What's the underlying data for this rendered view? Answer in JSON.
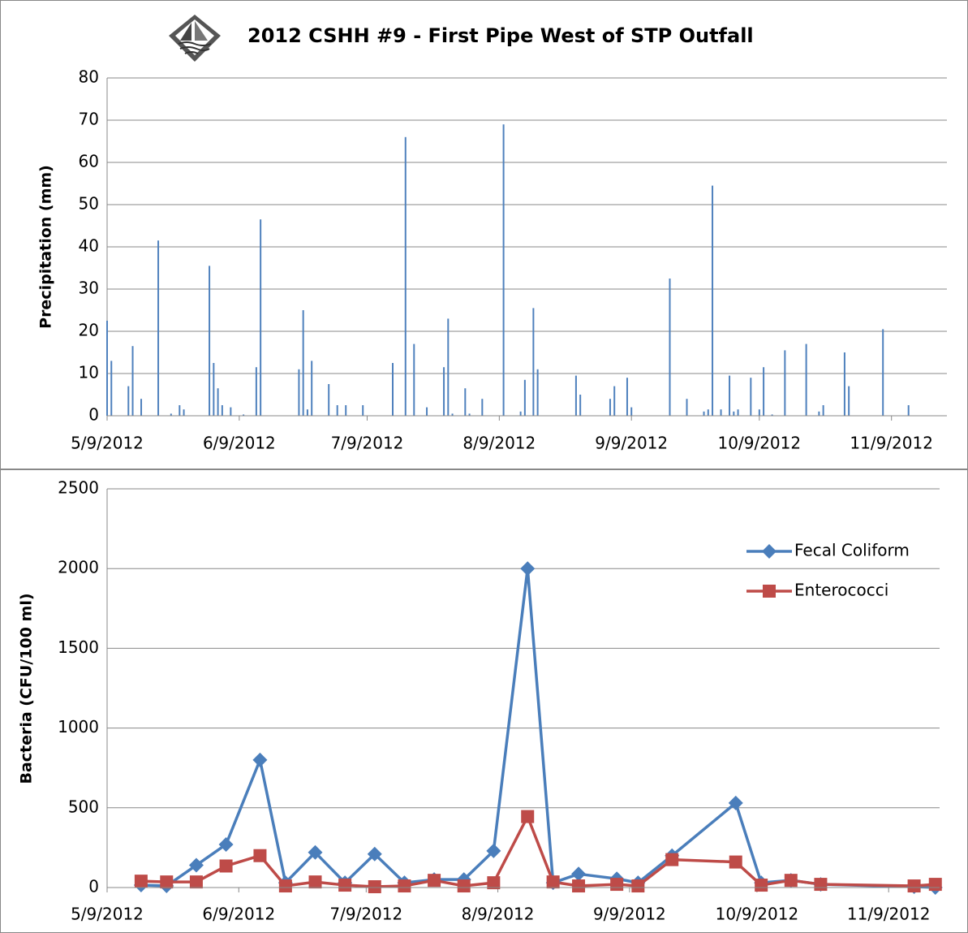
{
  "chart_data": [
    {
      "type": "bar",
      "title": "2012 CSHH #9 - First Pipe West of STP Outfall",
      "y_label": "Precipitation (mm)",
      "color": "#4f81bd",
      "grid": true,
      "x": [
        "2012-05-09",
        "2012-05-10",
        "2012-05-14",
        "2012-05-15",
        "2012-05-17",
        "2012-05-21",
        "2012-05-24",
        "2012-05-26",
        "2012-05-27",
        "2012-06-02",
        "2012-06-03",
        "2012-06-04",
        "2012-06-05",
        "2012-06-07",
        "2012-06-10",
        "2012-06-13",
        "2012-06-14",
        "2012-06-23",
        "2012-06-24",
        "2012-06-25",
        "2012-06-26",
        "2012-06-30",
        "2012-07-02",
        "2012-07-04",
        "2012-07-08",
        "2012-07-15",
        "2012-07-18",
        "2012-07-20",
        "2012-07-23",
        "2012-07-27",
        "2012-07-28",
        "2012-07-29",
        "2012-08-01",
        "2012-08-02",
        "2012-08-05",
        "2012-08-10",
        "2012-08-14",
        "2012-08-15",
        "2012-08-17",
        "2012-08-18",
        "2012-08-27",
        "2012-08-28",
        "2012-09-04",
        "2012-09-05",
        "2012-09-08",
        "2012-09-09",
        "2012-09-18",
        "2012-09-22",
        "2012-09-26",
        "2012-09-27",
        "2012-09-28",
        "2012-09-30",
        "2012-10-02",
        "2012-10-03",
        "2012-10-04",
        "2012-10-07",
        "2012-10-09",
        "2012-10-10",
        "2012-10-12",
        "2012-10-15",
        "2012-10-20",
        "2012-10-23",
        "2012-10-24",
        "2012-10-29",
        "2012-10-30",
        "2012-11-07",
        "2012-11-13"
      ],
      "values": [
        22.5,
        13,
        7,
        16.5,
        4,
        41.5,
        0.5,
        2.5,
        1.5,
        35.5,
        12.5,
        6.5,
        2.5,
        2,
        0.3,
        11.5,
        46.5,
        11,
        25,
        1.5,
        13,
        7.5,
        2.5,
        2.5,
        2.5,
        12.5,
        66,
        17,
        2,
        11.5,
        23,
        0.5,
        6.5,
        0.5,
        4,
        69,
        1,
        8.5,
        25.5,
        11,
        9.5,
        5,
        4,
        7,
        9,
        2,
        32.5,
        4,
        1,
        1.5,
        54.5,
        1.5,
        9.5,
        1,
        1.5,
        9,
        1.5,
        11.5,
        0.3,
        15.5,
        17,
        1,
        2.5,
        15,
        7,
        20.5,
        2.5
      ],
      "xlim": [
        "2012-05-09",
        "2012-11-22"
      ],
      "xticks": [
        {
          "value": "2012-05-09",
          "label": "5/9/2012"
        },
        {
          "value": "2012-06-09",
          "label": "6/9/2012"
        },
        {
          "value": "2012-07-09",
          "label": "7/9/2012"
        },
        {
          "value": "2012-08-09",
          "label": "8/9/2012"
        },
        {
          "value": "2012-09-09",
          "label": "9/9/2012"
        },
        {
          "value": "2012-10-09",
          "label": "10/9/2012"
        },
        {
          "value": "2012-11-09",
          "label": "11/9/2012"
        }
      ],
      "ylim": [
        0,
        80
      ],
      "yticks": [
        0,
        10,
        20,
        30,
        40,
        50,
        60,
        70,
        80
      ]
    },
    {
      "type": "line",
      "y_label": "Bacteria (CFU/100 ml)",
      "grid": true,
      "legend": "upper right",
      "x": [
        "2012-05-17",
        "2012-05-23",
        "2012-05-30",
        "2012-06-06",
        "2012-06-14",
        "2012-06-20",
        "2012-06-27",
        "2012-07-04",
        "2012-07-11",
        "2012-07-18",
        "2012-07-25",
        "2012-08-01",
        "2012-08-08",
        "2012-08-16",
        "2012-08-22",
        "2012-08-28",
        "2012-09-06",
        "2012-09-11",
        "2012-09-19",
        "2012-10-04",
        "2012-10-10",
        "2012-10-17",
        "2012-10-24",
        "2012-11-15",
        "2012-11-20"
      ],
      "series": [
        {
          "name": "Fecal Coliform",
          "color": "#4a7ebb",
          "marker": "diamond",
          "values": [
            15,
            10,
            140,
            270,
            800,
            30,
            220,
            30,
            210,
            30,
            50,
            50,
            230,
            2000,
            30,
            85,
            55,
            30,
            200,
            530,
            30,
            45,
            20,
            5,
            0
          ]
        },
        {
          "name": "Enterococci",
          "color": "#be4b48",
          "marker": "square",
          "values": [
            40,
            35,
            35,
            135,
            200,
            10,
            35,
            15,
            5,
            10,
            45,
            10,
            30,
            445,
            35,
            10,
            20,
            10,
            175,
            160,
            15,
            45,
            20,
            10,
            20
          ]
        }
      ],
      "xlim": [
        "2012-05-09",
        "2012-11-21"
      ],
      "xticks": [
        {
          "value": "2012-05-09",
          "label": "5/9/2012"
        },
        {
          "value": "2012-06-09",
          "label": "6/9/2012"
        },
        {
          "value": "2012-07-09",
          "label": "7/9/2012"
        },
        {
          "value": "2012-08-09",
          "label": "8/9/2012"
        },
        {
          "value": "2012-09-09",
          "label": "9/9/2012"
        },
        {
          "value": "2012-10-09",
          "label": "10/9/2012"
        },
        {
          "value": "2012-11-09",
          "label": "11/9/2012"
        }
      ],
      "ylim": [
        0,
        2500
      ],
      "yticks": [
        0,
        500,
        1000,
        1500,
        2000,
        2500
      ]
    }
  ]
}
